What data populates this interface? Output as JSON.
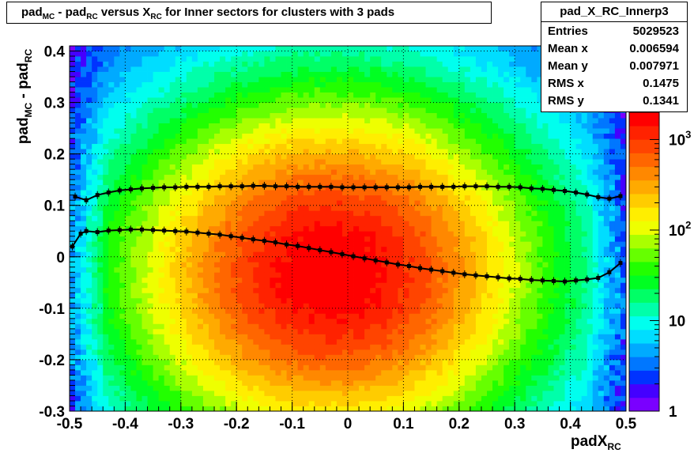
{
  "title": {
    "parts": [
      "pad",
      "MC",
      " - pad",
      "RC",
      " versus X",
      "RC",
      " for Inner sectors for clusters with 3 pads"
    ]
  },
  "stats_box": {
    "name": "pad_X_RC_Innerp3",
    "rows": [
      {
        "label": "Entries",
        "value": "5029523"
      },
      {
        "label": "Mean x",
        "value": "0.006594"
      },
      {
        "label": "Mean y",
        "value": "0.007971"
      },
      {
        "label": "RMS x",
        "value": "0.1475"
      },
      {
        "label": "RMS y",
        "value": "0.1341"
      }
    ]
  },
  "axes": {
    "x_label_main": "padX",
    "x_label_sub": "RC",
    "y_label_parts": [
      "pad",
      "MC",
      " - pad",
      "RC"
    ]
  },
  "chart_data": {
    "type": "heatmap",
    "xlim": [
      -0.5,
      0.5
    ],
    "ylim": [
      -0.3,
      0.41
    ],
    "x_ticks": [
      -0.5,
      -0.4,
      -0.3,
      -0.2,
      -0.1,
      0,
      0.1,
      0.2,
      0.3,
      0.4,
      0.5
    ],
    "x_tick_labels": [
      "-0.5",
      "-0.4",
      "-0.3",
      "-0.2",
      "-0.1",
      "0",
      "0.1",
      "0.2",
      "0.3",
      "0.4",
      "0.5"
    ],
    "y_ticks": [
      -0.3,
      -0.2,
      -0.1,
      0,
      0.1,
      0.2,
      0.3,
      0.4
    ],
    "y_tick_labels": [
      "-0.3",
      "-0.2",
      "-0.1",
      "0",
      "0.1",
      "0.2",
      "0.3",
      "0.4"
    ],
    "z_scale": "log",
    "zlim": [
      1,
      2000
    ],
    "z_tick_labels": [
      {
        "value": 1,
        "base": "1",
        "exp": ""
      },
      {
        "value": 10,
        "base": "10",
        "exp": ""
      },
      {
        "value": 100,
        "base": "10",
        "exp": "2"
      },
      {
        "value": 1000,
        "base": "10",
        "exp": "3"
      }
    ],
    "grid": true,
    "peak_center": [
      -0.03,
      -0.03
    ],
    "palette": [
      "#7a00ff",
      "#4400ff",
      "#0033ff",
      "#0077ff",
      "#00aaff",
      "#00ddff",
      "#00ffee",
      "#00ffaa",
      "#00ff66",
      "#00ff22",
      "#22ff00",
      "#66ff00",
      "#aaff00",
      "#eeff00",
      "#ffee00",
      "#ffcc00",
      "#ffaa00",
      "#ff8800",
      "#ff6600",
      "#ff4400",
      "#ff2200",
      "#ff0000"
    ],
    "series": [
      {
        "kind": "profile_rms",
        "color": "#000000",
        "x": [
          -0.49,
          -0.47,
          -0.45,
          -0.43,
          -0.41,
          -0.39,
          -0.37,
          -0.35,
          -0.33,
          -0.31,
          -0.29,
          -0.27,
          -0.25,
          -0.23,
          -0.21,
          -0.19,
          -0.17,
          -0.15,
          -0.13,
          -0.11,
          -0.09,
          -0.07,
          -0.05,
          -0.03,
          -0.01,
          0.01,
          0.03,
          0.05,
          0.07,
          0.09,
          0.11,
          0.13,
          0.15,
          0.17,
          0.19,
          0.21,
          0.23,
          0.25,
          0.27,
          0.29,
          0.31,
          0.33,
          0.35,
          0.37,
          0.39,
          0.41,
          0.43,
          0.45,
          0.47,
          0.49
        ],
        "y": [
          0.117,
          0.11,
          0.12,
          0.125,
          0.129,
          0.131,
          0.133,
          0.134,
          0.135,
          0.135,
          0.136,
          0.136,
          0.136,
          0.137,
          0.137,
          0.137,
          0.138,
          0.138,
          0.137,
          0.137,
          0.136,
          0.136,
          0.136,
          0.136,
          0.135,
          0.135,
          0.135,
          0.135,
          0.135,
          0.135,
          0.135,
          0.136,
          0.136,
          0.136,
          0.136,
          0.137,
          0.137,
          0.137,
          0.136,
          0.136,
          0.135,
          0.133,
          0.132,
          0.13,
          0.128,
          0.125,
          0.121,
          0.116,
          0.113,
          0.118
        ]
      },
      {
        "kind": "profile_mean",
        "color": "#000000",
        "x": [
          -0.495,
          -0.48,
          -0.47,
          -0.45,
          -0.43,
          -0.41,
          -0.39,
          -0.37,
          -0.35,
          -0.33,
          -0.31,
          -0.29,
          -0.27,
          -0.25,
          -0.23,
          -0.21,
          -0.19,
          -0.17,
          -0.15,
          -0.13,
          -0.11,
          -0.09,
          -0.07,
          -0.05,
          -0.03,
          -0.01,
          0.01,
          0.03,
          0.05,
          0.07,
          0.09,
          0.11,
          0.13,
          0.15,
          0.17,
          0.19,
          0.21,
          0.23,
          0.25,
          0.27,
          0.29,
          0.31,
          0.33,
          0.35,
          0.37,
          0.39,
          0.41,
          0.43,
          0.45,
          0.47,
          0.49
        ],
        "y": [
          0.02,
          0.045,
          0.05,
          0.048,
          0.051,
          0.052,
          0.053,
          0.053,
          0.052,
          0.051,
          0.05,
          0.049,
          0.047,
          0.045,
          0.043,
          0.04,
          0.037,
          0.034,
          0.031,
          0.028,
          0.024,
          0.021,
          0.017,
          0.013,
          0.009,
          0.005,
          0.001,
          -0.003,
          -0.007,
          -0.011,
          -0.015,
          -0.018,
          -0.022,
          -0.025,
          -0.028,
          -0.031,
          -0.034,
          -0.036,
          -0.038,
          -0.04,
          -0.042,
          -0.043,
          -0.045,
          -0.046,
          -0.047,
          -0.048,
          -0.046,
          -0.044,
          -0.041,
          -0.03,
          -0.012
        ]
      }
    ]
  }
}
